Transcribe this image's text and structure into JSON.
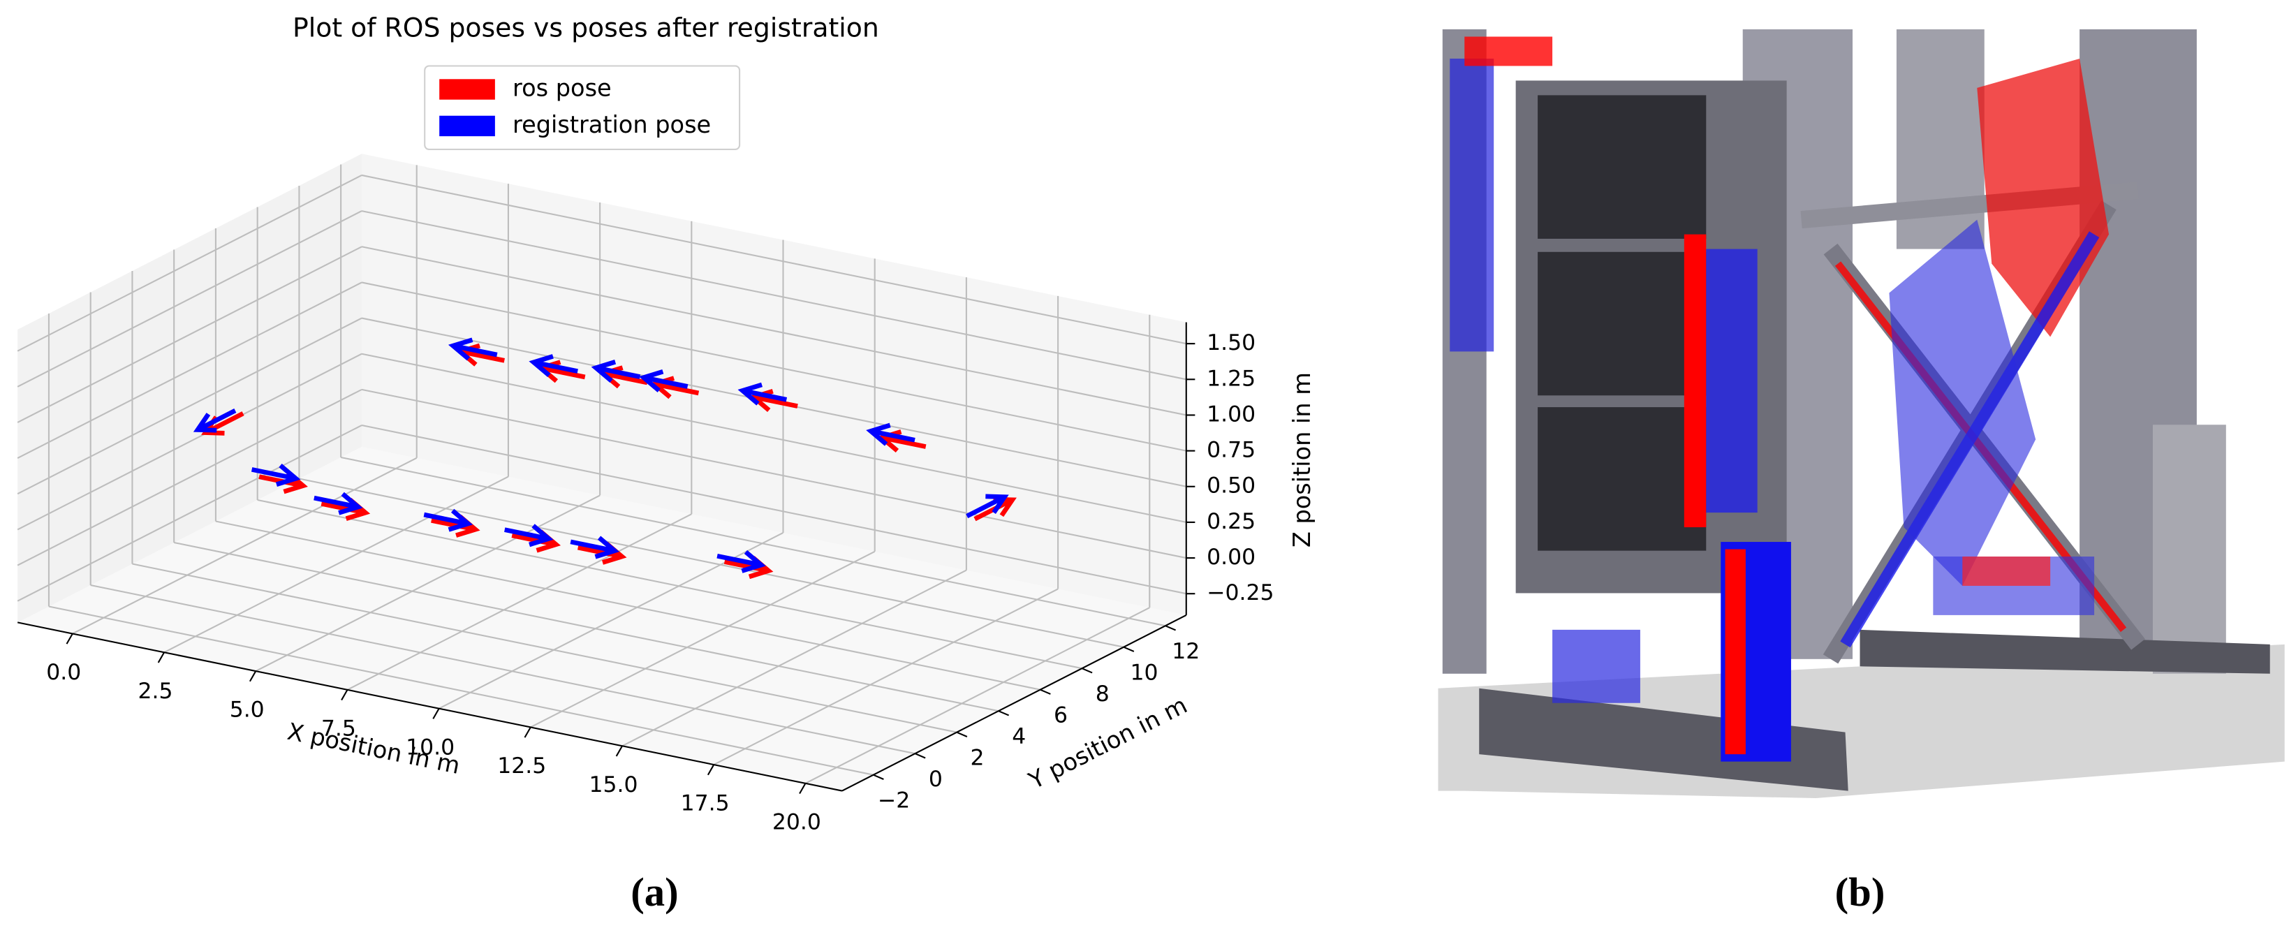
{
  "chart_data": {
    "type": "quiver3d",
    "title": "Plot of ROS poses vs poses after registration",
    "xlabel": "X position in m",
    "ylabel": "Y position in m",
    "zlabel": "Z position in m",
    "xlim": [
      -1.5,
      21
    ],
    "ylim": [
      -3.5,
      13
    ],
    "zlim": [
      -0.4,
      1.65
    ],
    "xticks": [
      {
        "value": 0,
        "label": "0.0"
      },
      {
        "value": 2.5,
        "label": "2.5"
      },
      {
        "value": 5,
        "label": "5.0"
      },
      {
        "value": 7.5,
        "label": "7.5"
      },
      {
        "value": 10,
        "label": "10.0"
      },
      {
        "value": 12.5,
        "label": "12.5"
      },
      {
        "value": 15,
        "label": "15.0"
      },
      {
        "value": 17.5,
        "label": "17.5"
      },
      {
        "value": 20,
        "label": "20.0"
      }
    ],
    "yticks": [
      {
        "value": -2,
        "label": "−2"
      },
      0,
      2,
      4,
      6,
      8,
      10,
      12
    ],
    "zticks": [
      {
        "value": -0.25,
        "label": "−0.25"
      },
      {
        "value": 0,
        "label": "0.00"
      },
      {
        "value": 0.25,
        "label": "0.25"
      },
      {
        "value": 0.5,
        "label": "0.50"
      },
      {
        "value": 0.75,
        "label": "0.75"
      },
      {
        "value": 1,
        "label": "1.00"
      },
      {
        "value": 1.25,
        "label": "1.25"
      },
      {
        "value": 1.5,
        "label": "1.50"
      }
    ],
    "grid": true,
    "legend": "upper center",
    "series": [
      {
        "name": "ros pose",
        "color": "#ff0000",
        "x": [
          3.1,
          4.8,
          7.8,
          10.0,
          11.8,
          15.8,
          19.1,
          15.6,
          12.1,
          9.4,
          8.0,
          6.3,
          4.1,
          0.1
        ],
        "y": [
          0,
          0,
          0,
          0,
          0,
          0,
          6.2,
          10,
          10,
          10,
          10,
          10,
          10,
          4.5
        ],
        "z": [
          0.6,
          0.5,
          0.54,
          0.55,
          0.56,
          0.67,
          0.68,
          0.72,
          0.82,
          0.77,
          0.77,
          0.72,
          0.72,
          0.55
        ],
        "u": [
          1.2,
          1.2,
          1.2,
          1.2,
          1.2,
          1.2,
          0,
          -1.2,
          -1.2,
          -1.2,
          -1.2,
          -1.2,
          -1.2,
          0
        ],
        "v": [
          0,
          0,
          0,
          0,
          0,
          0,
          1.8,
          0,
          0,
          0,
          0,
          0,
          0,
          -1.8
        ],
        "w": [
          0,
          0,
          0,
          0,
          0,
          0,
          0,
          0,
          0,
          0,
          0,
          0,
          0,
          0
        ]
      },
      {
        "name": "registration pose",
        "color": "#0000ff",
        "x": [
          2.9,
          4.6,
          7.6,
          9.8,
          11.6,
          15.6,
          19,
          15.3,
          11.8,
          9.1,
          7.8,
          6.1,
          3.9,
          0
        ],
        "y": [
          0,
          0,
          0,
          0,
          0,
          0,
          6,
          10,
          10,
          10,
          10,
          10,
          10,
          4.3
        ],
        "z": [
          0.64,
          0.53,
          0.57,
          0.58,
          0.59,
          0.7,
          0.71,
          0.75,
          0.85,
          0.8,
          0.8,
          0.75,
          0.75,
          0.58
        ],
        "u": [
          1.2,
          1.2,
          1.2,
          1.2,
          1.2,
          1.2,
          0,
          -1.2,
          -1.2,
          -1.2,
          -1.2,
          -1.2,
          -1.2,
          0
        ],
        "v": [
          0,
          0,
          0,
          0,
          0,
          0,
          1.8,
          0,
          0,
          0,
          0,
          0,
          0,
          -1.8
        ],
        "w": [
          0,
          0,
          0,
          0,
          0,
          0,
          0,
          0,
          0,
          0,
          0,
          0,
          0,
          0
        ]
      }
    ]
  },
  "captions": {
    "a": "(a)",
    "b": "(b)"
  }
}
